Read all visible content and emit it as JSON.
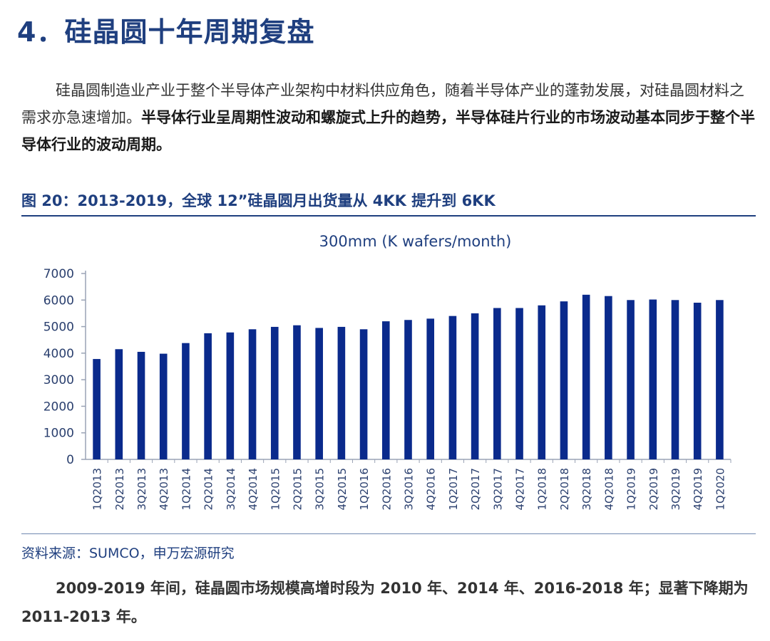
{
  "heading": "4．硅晶圆十年周期复盘",
  "paragraph": {
    "normal": "硅晶圆制造业产业于整个半导体产业架构中材料供应角色，随着半导体产业的蓬勃发展，对硅晶圆材料之需求亦急速增加。",
    "bold": "半导体行业呈周期性波动和螺旋式上升的趋势，半导体硅片行业的市场波动基本同步于整个半导体行业的波动周期。"
  },
  "figure_title": "图 20：2013-2019，全球 12”硅晶圆月出货量从 4KK 提升到 6KK",
  "source": "资料来源：SUMCO，申万宏源研究",
  "conclusion": "2009-2019 年间，硅晶圆市场规模高增时段为 2010 年、2014 年、2016-2018 年；显著下降期为 2011-2013 年。",
  "colors": {
    "accent": "#1f3f7f",
    "bar": "#0a2a8c",
    "axis": "#9aa3b5"
  },
  "chart_data": {
    "type": "bar",
    "title": "300mm (K wafers/month)",
    "xlabel": "",
    "ylabel": "",
    "ylim": [
      0,
      7000
    ],
    "yticks": [
      0,
      1000,
      2000,
      3000,
      4000,
      5000,
      6000,
      7000
    ],
    "grid": false,
    "categories": [
      "1Q2013",
      "2Q2013",
      "3Q2013",
      "4Q2013",
      "1Q2014",
      "2Q2014",
      "3Q2014",
      "4Q2014",
      "1Q2015",
      "2Q2015",
      "3Q2015",
      "4Q2015",
      "1Q2016",
      "2Q2016",
      "3Q2016",
      "4Q2016",
      "1Q2017",
      "2Q2017",
      "3Q2017",
      "4Q2017",
      "1Q2018",
      "2Q2018",
      "3Q2018",
      "4Q2018",
      "1Q2019",
      "2Q2019",
      "3Q2019",
      "4Q2019",
      "1Q2020"
    ],
    "values": [
      3780,
      4150,
      4050,
      3980,
      4380,
      4750,
      4780,
      4900,
      4990,
      5050,
      4950,
      4990,
      4900,
      5200,
      5250,
      5300,
      5400,
      5500,
      5700,
      5700,
      5800,
      5950,
      6200,
      6150,
      6000,
      6020,
      6000,
      5900,
      6000
    ]
  }
}
